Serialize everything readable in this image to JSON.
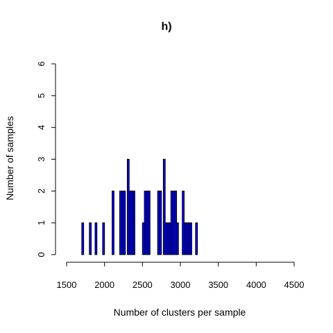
{
  "chart_data": {
    "type": "bar",
    "title": "h)",
    "xlabel": "Number of clusters per sample",
    "ylabel": "Number of samples",
    "xlim": [
      1500,
      4500
    ],
    "ylim": [
      0,
      6
    ],
    "xticks": [
      1500,
      2000,
      2500,
      3000,
      3500,
      4000,
      4500
    ],
    "yticks": [
      0,
      1,
      2,
      3,
      4,
      5,
      6
    ],
    "bin_width": 25,
    "bar_color": "#0000ff",
    "bins": [
      {
        "x": 1700,
        "count": 1
      },
      {
        "x": 1800,
        "count": 1
      },
      {
        "x": 1875,
        "count": 1
      },
      {
        "x": 1975,
        "count": 1
      },
      {
        "x": 2100,
        "count": 2
      },
      {
        "x": 2200,
        "count": 2
      },
      {
        "x": 2225,
        "count": 2
      },
      {
        "x": 2250,
        "count": 2
      },
      {
        "x": 2300,
        "count": 3
      },
      {
        "x": 2325,
        "count": 2
      },
      {
        "x": 2350,
        "count": 2
      },
      {
        "x": 2375,
        "count": 2
      },
      {
        "x": 2500,
        "count": 1
      },
      {
        "x": 2525,
        "count": 2
      },
      {
        "x": 2550,
        "count": 2
      },
      {
        "x": 2575,
        "count": 2
      },
      {
        "x": 2700,
        "count": 2
      },
      {
        "x": 2725,
        "count": 2
      },
      {
        "x": 2775,
        "count": 3
      },
      {
        "x": 2800,
        "count": 1
      },
      {
        "x": 2825,
        "count": 1
      },
      {
        "x": 2850,
        "count": 1
      },
      {
        "x": 2875,
        "count": 2
      },
      {
        "x": 2900,
        "count": 2
      },
      {
        "x": 2925,
        "count": 2
      },
      {
        "x": 2950,
        "count": 1
      },
      {
        "x": 3025,
        "count": 2
      },
      {
        "x": 3050,
        "count": 1
      },
      {
        "x": 3075,
        "count": 1
      },
      {
        "x": 3100,
        "count": 1
      },
      {
        "x": 3125,
        "count": 1
      },
      {
        "x": 3200,
        "count": 1
      }
    ]
  }
}
